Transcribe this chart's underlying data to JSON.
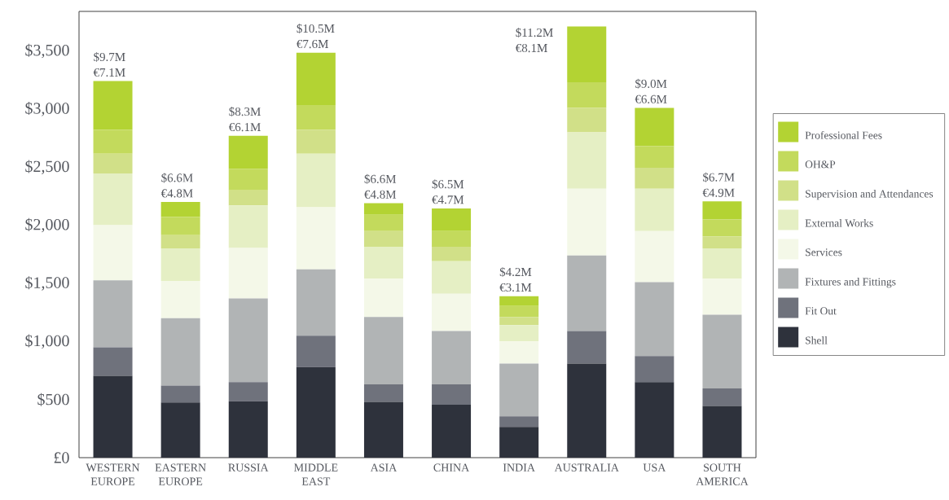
{
  "chart_data": {
    "type": "bar",
    "stacked": true,
    "legend": "right",
    "categories": [
      "WESTERN EUROPE",
      "EASTERN EUROPE",
      "RUSSIA",
      "MIDDLE EAST",
      "ASIA",
      "CHINA",
      "INDIA",
      "AUSTRALIA",
      "USA",
      "SOUTH AMERICA"
    ],
    "series": [
      {
        "name": "Shell",
        "color": "#2e323c",
        "values": [
          705,
          475,
          485,
          780,
          480,
          455,
          265,
          810,
          650,
          445
        ]
      },
      {
        "name": "Fit Out",
        "color": "#6f727c",
        "values": [
          245,
          145,
          165,
          270,
          150,
          175,
          90,
          280,
          225,
          150
        ]
      },
      {
        "name": "Fixtures and Fittings",
        "color": "#b1b4b5",
        "values": [
          575,
          580,
          720,
          570,
          580,
          460,
          455,
          650,
          635,
          635
        ]
      },
      {
        "name": "Services",
        "color": "#f4f8e8",
        "values": [
          475,
          320,
          435,
          535,
          330,
          320,
          190,
          575,
          440,
          310
        ]
      },
      {
        "name": "External Works",
        "color": "#e5efc4",
        "values": [
          445,
          280,
          365,
          460,
          275,
          280,
          140,
          485,
          365,
          260
        ]
      },
      {
        "name": "Supervision and Attendances",
        "color": "#d1e088",
        "values": [
          170,
          115,
          130,
          205,
          135,
          125,
          70,
          210,
          180,
          105
        ]
      },
      {
        "name": "OH&P",
        "color": "#c3da5c",
        "values": [
          205,
          155,
          185,
          215,
          140,
          135,
          95,
          220,
          185,
          145
        ]
      },
      {
        "name": "Professional Fees",
        "color": "#b3d333",
        "values": [
          420,
          130,
          285,
          450,
          100,
          195,
          85,
          480,
          330,
          155
        ]
      }
    ],
    "totals": [
      "$9.7M €7.1M",
      "$6.6M €4.8M",
      "$8.3M €6.1M",
      "$10.5M €7.6M",
      "$6.6M €4.8M",
      "$6.5M €4.7M",
      "$4.2M €3.1M",
      "$11.2M €8.1M",
      "$9.0M €6.6M",
      "$6.7M €4.9M"
    ],
    "ylim": [
      0,
      3840
    ],
    "yticks": [
      {
        "value": 0,
        "label": "£0"
      },
      {
        "value": 500,
        "label": "$500"
      },
      {
        "value": 1000,
        "label": "$1,000"
      },
      {
        "value": 1500,
        "label": "$1,500"
      },
      {
        "value": 2000,
        "label": "$2,000"
      },
      {
        "value": 2500,
        "label": "$2,500"
      },
      {
        "value": 3000,
        "label": "$3,000"
      },
      {
        "value": 3500,
        "label": "$3,500"
      }
    ]
  }
}
